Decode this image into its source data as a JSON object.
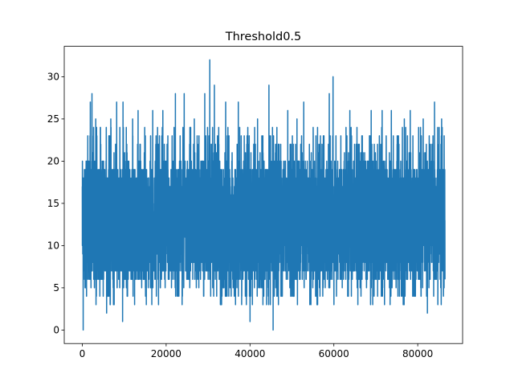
{
  "chart_data": {
    "type": "line",
    "title": "Threshold0.5",
    "xlabel": "",
    "ylabel": "",
    "xlim": [
      -4300,
      90700
    ],
    "ylim": [
      -1.6,
      33.6
    ],
    "x_ticks": [
      0,
      20000,
      40000,
      60000,
      80000
    ],
    "x_tick_labels": [
      "0",
      "20000",
      "40000",
      "60000",
      "80000"
    ],
    "y_ticks": [
      0,
      5,
      10,
      15,
      20,
      25,
      30
    ],
    "y_tick_labels": [
      "0",
      "5",
      "10",
      "15",
      "20",
      "25",
      "30"
    ],
    "grid": false,
    "legend": "none",
    "series": [
      {
        "color": "#1f77b4",
        "points": [
          [
            0,
            17
          ],
          [
            200,
            0
          ],
          [
            500,
            10
          ],
          [
            900,
            20
          ],
          [
            1300,
            23
          ],
          [
            1900,
            27
          ],
          [
            2300,
            28
          ],
          [
            3200,
            25
          ],
          [
            4300,
            24
          ],
          [
            5800,
            2
          ],
          [
            6800,
            25
          ],
          [
            8200,
            27
          ],
          [
            9600,
            1
          ],
          [
            9700,
            27
          ],
          [
            12000,
            25
          ],
          [
            13300,
            26
          ],
          [
            16800,
            26
          ],
          [
            19200,
            26
          ],
          [
            22200,
            28
          ],
          [
            24300,
            28
          ],
          [
            26700,
            25
          ],
          [
            29200,
            28
          ],
          [
            30400,
            32
          ],
          [
            31500,
            29
          ],
          [
            34200,
            27
          ],
          [
            37200,
            27
          ],
          [
            40000,
            1
          ],
          [
            41800,
            25
          ],
          [
            44500,
            29
          ],
          [
            45500,
            0
          ],
          [
            49000,
            26
          ],
          [
            51200,
            25
          ],
          [
            52800,
            27
          ],
          [
            56100,
            24
          ],
          [
            58900,
            28
          ],
          [
            59800,
            30
          ],
          [
            63800,
            26
          ],
          [
            68900,
            26
          ],
          [
            71500,
            26
          ],
          [
            73700,
            26
          ],
          [
            76800,
            25
          ],
          [
            78200,
            26
          ],
          [
            81300,
            25
          ],
          [
            82300,
            2
          ],
          [
            84000,
            27
          ],
          [
            84800,
            3
          ],
          [
            85700,
            25
          ],
          [
            86300,
            23
          ],
          [
            86500,
            6
          ]
        ],
        "base_band": [
          6,
          20
        ],
        "extreme_band": [
          3,
          24
        ],
        "n_points": 86500
      }
    ]
  }
}
